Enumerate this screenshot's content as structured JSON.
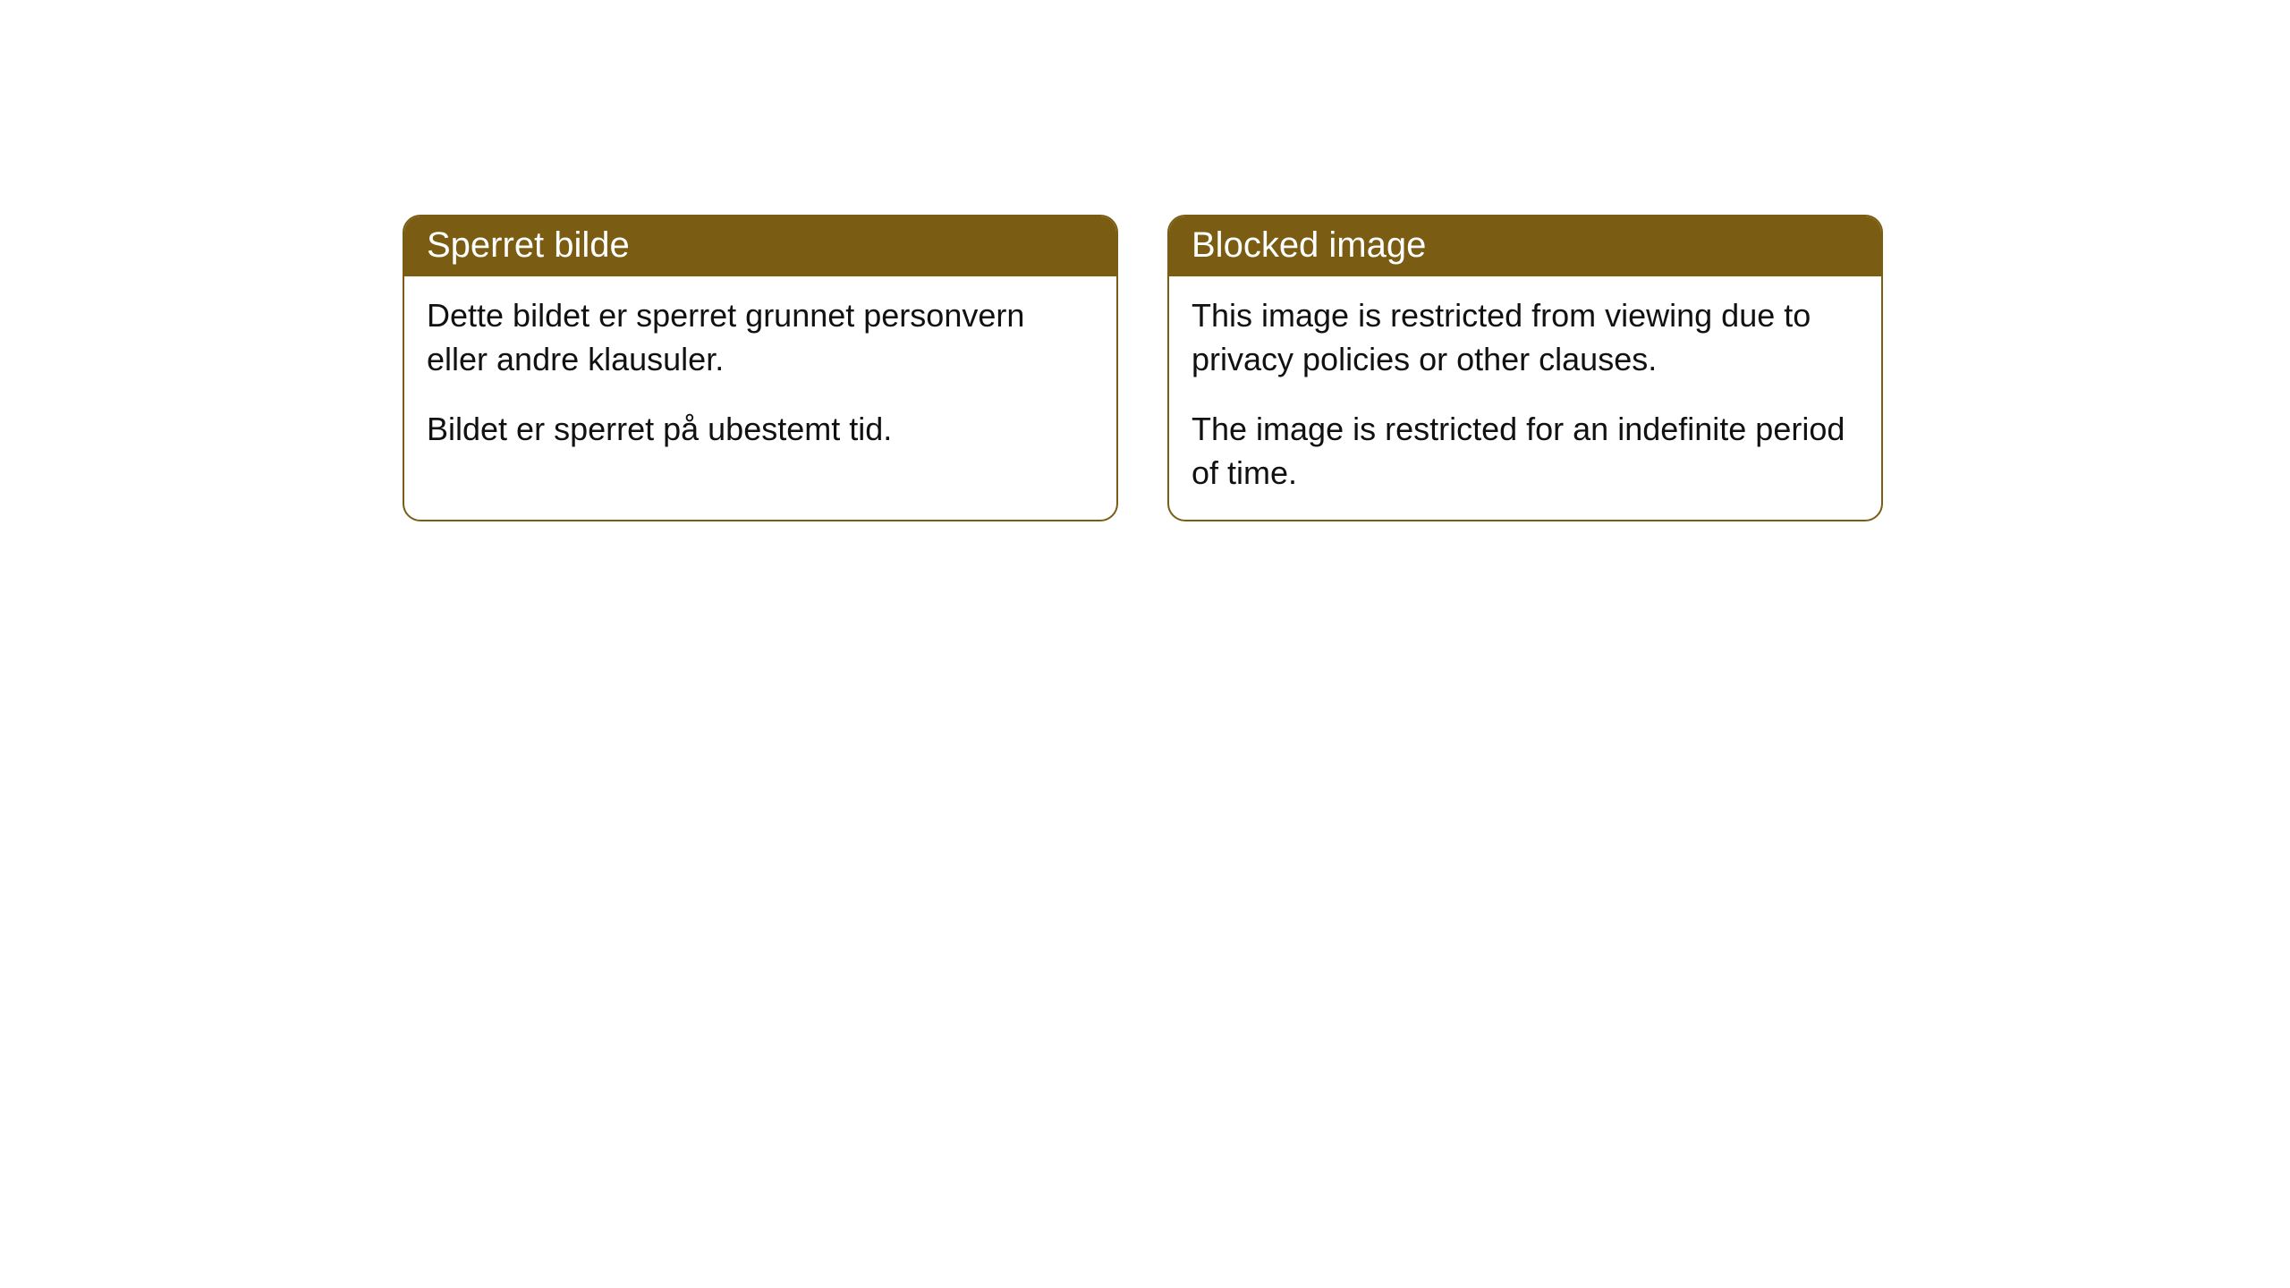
{
  "cards": [
    {
      "title": "Sperret bilde",
      "paragraph1": "Dette bildet er sperret grunnet personvern eller andre klausuler.",
      "paragraph2": "Bildet er sperret på ubestemt tid."
    },
    {
      "title": "Blocked image",
      "paragraph1": "This image is restricted from viewing due to privacy policies or other clauses.",
      "paragraph2": "The image is restricted for an indefinite period of time."
    }
  ],
  "styling": {
    "header_background_color": "#7a5c13",
    "header_text_color": "#ffffff",
    "border_color": "#7a5c13",
    "card_background_color": "#ffffff",
    "body_text_color": "#111111",
    "border_radius": 20,
    "header_fontsize": 40,
    "body_fontsize": 36
  }
}
